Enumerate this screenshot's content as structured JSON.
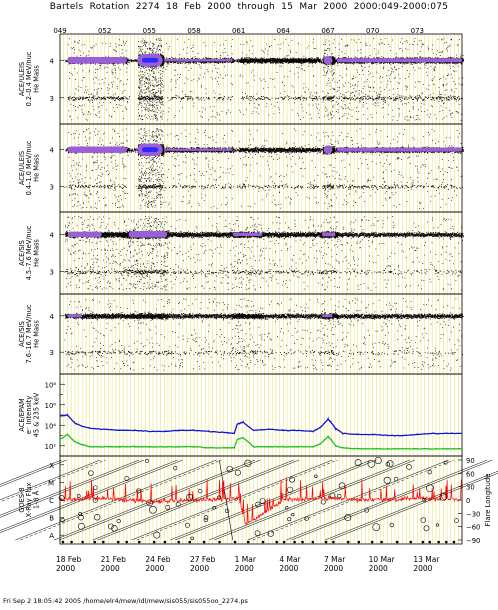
{
  "title": "Bartels Rotation 2274    18 Feb 2000 through 15 Mar 2000    2000:049-2000:075",
  "footer": "Fri Sep  2 18:05:42 2005    /home/elr4/mew/idl/mew/sis055/sis055oo_2274.ps",
  "colors": {
    "gridline": "#e8e06a",
    "dense": "#9a5fd6",
    "core": "#2a2aff",
    "electron_high": "#1515d0",
    "electron_low": "#20c020",
    "xray": "#ff0000",
    "flare_line": "#000000"
  },
  "chart_data": {
    "type": "scatter",
    "x_axis": {
      "day_of_year_ticks": [
        "049",
        "052",
        "055",
        "058",
        "061",
        "064",
        "067",
        "070",
        "073"
      ],
      "date_ticks": [
        {
          "date": "18 Feb",
          "year": "2000"
        },
        {
          "date": "21 Feb",
          "year": "2000"
        },
        {
          "date": "24 Feb",
          "year": "2000"
        },
        {
          "date": "27 Feb",
          "year": "2000"
        },
        {
          "date": "1 Mar",
          "year": "2000"
        },
        {
          "date": "4 Mar",
          "year": "2000"
        },
        {
          "date": "7 Mar",
          "year": "2000"
        },
        {
          "date": "10 Mar",
          "year": "2000"
        },
        {
          "date": "13 Mar",
          "year": "2000"
        }
      ],
      "range_doy": [
        49,
        76
      ]
    },
    "panels": [
      {
        "ylabel": [
          "ACE/ULEIS",
          "0.2–0.4 MeV/nuc",
          "He Mass"
        ],
        "yticks": [
          "4",
          "3"
        ],
        "ylim": [
          2.3,
          4.7
        ],
        "track_mass": [
          4,
          3
        ],
        "kind": "mass"
      },
      {
        "ylabel": [
          "ACE/ULEIS",
          "0.4–1.0 MeV/nuc",
          "He Mass"
        ],
        "yticks": [
          "4",
          "3"
        ],
        "ylim": [
          2.3,
          4.7
        ],
        "track_mass": [
          4,
          3
        ],
        "kind": "mass"
      },
      {
        "ylabel": [
          "ACE/SIS",
          "4.5–7.6 MeV/nuc",
          "He Mass"
        ],
        "yticks": [
          "4",
          "3"
        ],
        "ylim": [
          2.4,
          4.6
        ],
        "track_mass": [
          4,
          3
        ],
        "kind": "mass"
      },
      {
        "ylabel": [
          "ACE/SIS",
          "7.6–16.7 MeV/nuc",
          "He Mass"
        ],
        "yticks": [
          "4",
          "3"
        ],
        "ylim": [
          2.4,
          4.6
        ],
        "track_mass": [
          4,
          3
        ],
        "kind": "mass"
      },
      {
        "ylabel": [
          "ACE/EPAM",
          "e⁻ Intensity",
          "45 & 235 keV"
        ],
        "yticks": [
          "10⁸",
          "10⁶",
          "10⁴",
          "10²"
        ],
        "ylim_log10": [
          1,
          9
        ],
        "kind": "electron",
        "series": [
          {
            "name": "45 keV",
            "color": "#1515d0",
            "x": [
              49.0,
              49.5,
              50.0,
              50.5,
              51.0,
              52.0,
              53.0,
              54.0,
              55.0,
              56.0,
              57.0,
              58.0,
              59.0,
              60.0,
              60.7,
              60.9,
              61.3,
              62.0,
              63.0,
              64.0,
              65.0,
              66.0,
              66.5,
              67.0,
              67.2,
              67.5,
              68.0,
              69.0,
              70.0,
              71.0,
              72.0,
              73.0,
              74.0,
              75.0,
              76.0
            ],
            "log10": [
              4.9,
              5.0,
              4.2,
              3.9,
              3.7,
              3.6,
              3.5,
              3.5,
              3.4,
              3.4,
              3.5,
              3.5,
              3.4,
              3.3,
              3.2,
              4.1,
              4.3,
              3.5,
              3.6,
              3.5,
              3.5,
              3.4,
              3.8,
              4.6,
              4.3,
              3.7,
              3.2,
              3.1,
              3.1,
              3.0,
              3.0,
              3.1,
              3.2,
              3.2,
              3.2
            ]
          },
          {
            "name": "235 keV",
            "color": "#20c020",
            "x": [
              49.0,
              49.5,
              50.0,
              50.5,
              51.0,
              52.0,
              53.0,
              54.0,
              55.0,
              56.0,
              57.0,
              58.0,
              59.0,
              60.0,
              60.7,
              60.9,
              61.3,
              62.0,
              63.0,
              64.0,
              65.0,
              66.0,
              66.5,
              67.0,
              67.2,
              67.5,
              68.0,
              69.0,
              70.0,
              71.0,
              72.0,
              73.0,
              74.0,
              75.0,
              76.0
            ],
            "log10": [
              2.6,
              3.1,
              2.4,
              2.1,
              1.9,
              1.9,
              1.9,
              1.9,
              1.9,
              1.9,
              1.9,
              1.9,
              1.8,
              1.8,
              1.8,
              2.6,
              2.8,
              1.9,
              1.9,
              1.9,
              1.9,
              1.9,
              2.2,
              2.9,
              2.6,
              2.0,
              1.8,
              1.7,
              1.7,
              1.7,
              1.7,
              1.7,
              1.7,
              1.7,
              1.7
            ]
          }
        ]
      },
      {
        "ylabel": [
          "GOES-8",
          "X-Ray Flux",
          "1–8 Å"
        ],
        "yticks_left": [
          "X",
          "M",
          "C",
          "B",
          "A"
        ],
        "yticks_right": [
          "90",
          "60",
          "30",
          "0",
          "−30",
          "−60",
          "−90"
        ],
        "y2label": "Flare Longitude",
        "kind": "xray",
        "xray_class_log10": [
          {
            "class": "X",
            "v": -4
          },
          {
            "class": "M",
            "v": -5
          },
          {
            "class": "C",
            "v": -6
          },
          {
            "class": "B",
            "v": -7
          },
          {
            "class": "A",
            "v": -8
          }
        ],
        "xray_background": {
          "x": [
            49,
            52,
            55,
            58,
            61,
            61.5,
            64,
            67,
            70,
            73,
            76
          ],
          "log10": [
            -6.0,
            -5.9,
            -6.1,
            -6.0,
            -5.9,
            -7.4,
            -6.0,
            -5.9,
            -6.0,
            -5.9,
            -6.0
          ]
        }
      }
    ]
  }
}
